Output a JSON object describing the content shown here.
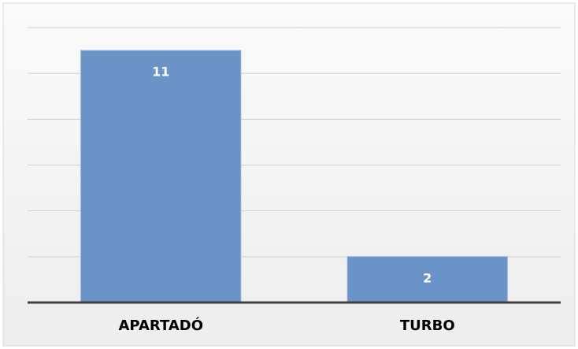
{
  "chart_data": {
    "type": "bar",
    "categories": [
      "APARTADÓ",
      "TURBO"
    ],
    "values": [
      11,
      2
    ],
    "color": "#6a93c8",
    "ylim": [
      0,
      12
    ],
    "yticks": [
      0,
      2,
      4,
      6,
      8,
      10,
      12
    ],
    "grid": true
  }
}
